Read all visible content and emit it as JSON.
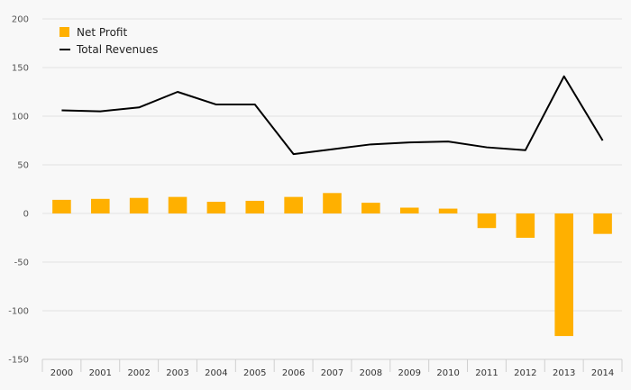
{
  "chart_data": {
    "type": "bar",
    "categories": [
      "2000",
      "2001",
      "2002",
      "2003",
      "2004",
      "2005",
      "2006",
      "2007",
      "2008",
      "2009",
      "2010",
      "2011",
      "2012",
      "2013",
      "2014"
    ],
    "series": [
      {
        "name": "Net Profit",
        "type": "bar",
        "color": "#ffb000",
        "values": [
          14,
          15,
          16,
          17,
          12,
          13,
          17,
          21,
          11,
          6,
          5,
          -15,
          -25,
          -126,
          -21
        ]
      },
      {
        "name": "Total Revenues",
        "type": "line",
        "color": "#000000",
        "values": [
          106,
          105,
          109,
          125,
          112,
          112,
          61,
          66,
          71,
          73,
          74,
          68,
          65,
          141,
          75
        ]
      }
    ],
    "ylim": [
      -150,
      200
    ],
    "yticks": [
      "200",
      "150",
      "100",
      "50",
      "0",
      "-50",
      "-100",
      "-150"
    ],
    "grid": true,
    "legend_position": "top-left"
  }
}
